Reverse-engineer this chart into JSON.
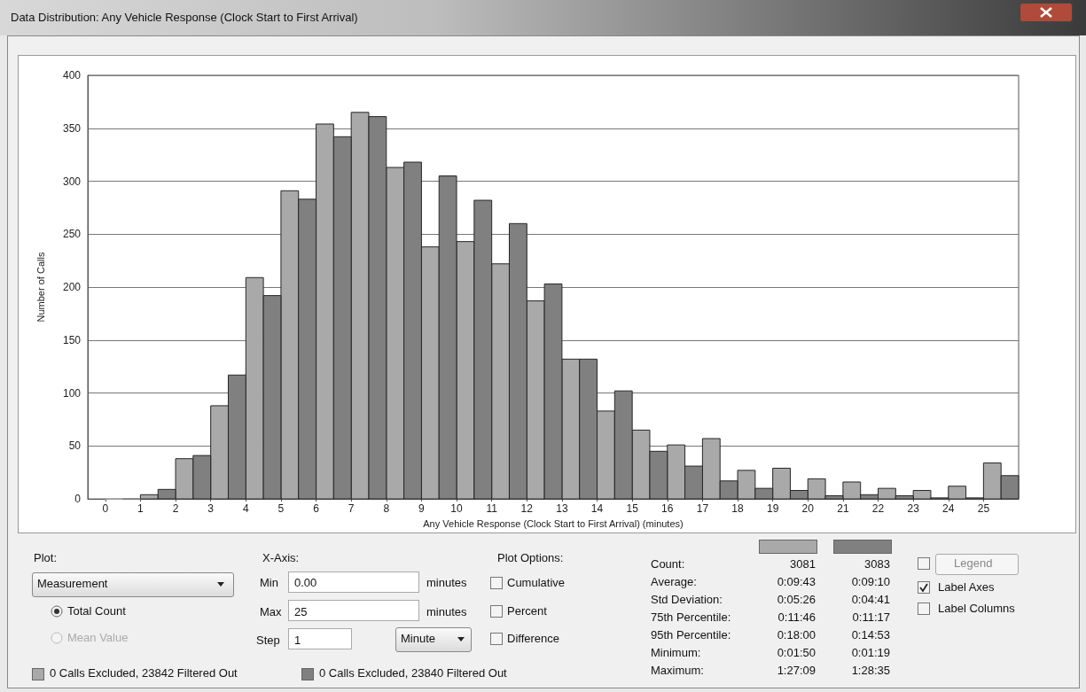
{
  "chart_data": {
    "type": "histogram",
    "title": "Data Distribution: Any Vehicle Response (Clock Start to First Arrival)",
    "xlabel": "Any Vehicle Response (Clock Start to First Arrival) (minutes)",
    "ylabel": "Number of Calls",
    "bins": [
      0,
      1,
      2,
      3,
      4,
      5,
      6,
      7,
      8,
      9,
      10,
      11,
      12,
      13,
      14,
      15,
      16,
      17,
      18,
      19,
      20,
      21,
      22,
      23,
      24,
      25,
      26
    ],
    "series": [
      {
        "color": "#a9a9a9",
        "values": [
          0,
          4,
          38,
          88,
          209,
          291,
          354,
          365,
          313,
          238,
          243,
          222,
          187,
          132,
          83,
          65,
          51,
          57,
          27,
          29,
          19,
          16,
          10,
          8,
          12,
          34
        ]
      },
      {
        "color": "#808080",
        "values": [
          0,
          9,
          41,
          117,
          192,
          283,
          342,
          361,
          318,
          305,
          282,
          260,
          203,
          132,
          102,
          45,
          31,
          17,
          10,
          8,
          3,
          4,
          3,
          1,
          1,
          22
        ]
      }
    ],
    "xlim": [
      -0.5,
      26
    ],
    "xticks": [
      0,
      1,
      2,
      3,
      4,
      5,
      6,
      7,
      8,
      9,
      10,
      11,
      12,
      13,
      14,
      15,
      16,
      17,
      18,
      19,
      20,
      21,
      22,
      23,
      24,
      25
    ],
    "ylim": [
      0,
      400
    ],
    "yticks": [
      0,
      50,
      100,
      150,
      200,
      250,
      300,
      350,
      400
    ],
    "grid": "y",
    "annotations": [
      "Plot:",
      "Measurement",
      "Total Count",
      "Mean Value",
      "X-Axis:",
      "Min",
      "0.00",
      "minutes",
      "Max",
      "25",
      "minutes",
      "Step",
      "1",
      "Minute",
      "Plot Options:",
      "Cumulative",
      "Percent",
      "Difference",
      "Count:",
      "Average:",
      "Std Deviation:",
      "75th Percentile:",
      "95th Percentile:",
      "Minimum:",
      "Maximum:",
      "3081",
      "0:09:43",
      "0:05:26",
      "0:11:46",
      "0:18:00",
      "0:01:50",
      "1:27:09",
      "3083",
      "0:09:10",
      "0:04:41",
      "0:11:17",
      "0:14:53",
      "0:01:19",
      "1:28:35",
      "Legend",
      "Label Axes",
      "Label Columns",
      "0 Calls Excluded, 23842 Filtered Out",
      "0 Calls Excluded, 23840 Filtered Out"
    ]
  }
}
